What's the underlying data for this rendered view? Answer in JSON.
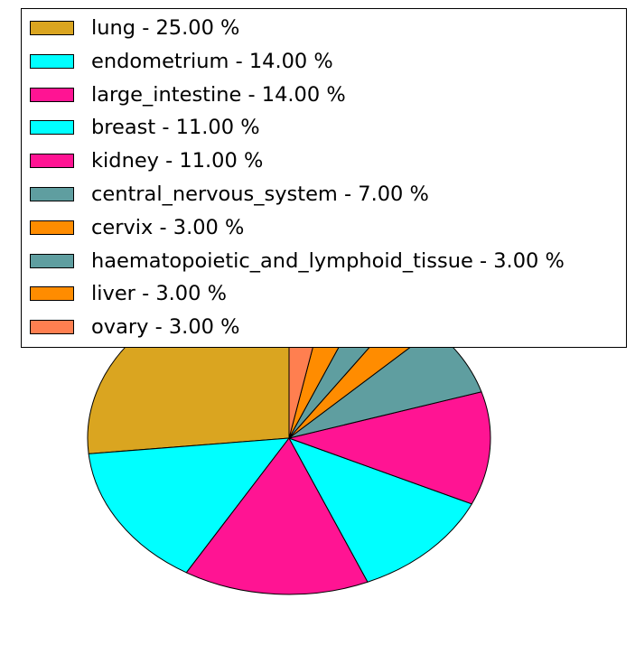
{
  "chart_data": {
    "type": "pie",
    "title": "",
    "start_angle_deg": 90,
    "direction": "counterclockwise",
    "legend_position": "top",
    "slices": [
      {
        "label": "lung",
        "value": 25.0,
        "legend": "lung - 25.00 %",
        "color": "#DAA520"
      },
      {
        "label": "endometrium",
        "value": 14.0,
        "legend": "endometrium - 14.00 %",
        "color": "#00FFFF"
      },
      {
        "label": "large_intestine",
        "value": 14.0,
        "legend": "large_intestine - 14.00 %",
        "color": "#FF1493"
      },
      {
        "label": "breast",
        "value": 11.0,
        "legend": "breast - 11.00 %",
        "color": "#00FFFF"
      },
      {
        "label": "kidney",
        "value": 11.0,
        "legend": "kidney - 11.00 %",
        "color": "#FF1493"
      },
      {
        "label": "central_nervous_system",
        "value": 7.0,
        "legend": "central_nervous_system - 7.00 %",
        "color": "#5F9EA0"
      },
      {
        "label": "cervix",
        "value": 3.0,
        "legend": "cervix - 3.00 %",
        "color": "#FF8C00"
      },
      {
        "label": "haematopoietic_and_lymphoid_tissue",
        "value": 3.0,
        "legend": "haematopoietic_and_lymphoid_tissue - 3.00 %",
        "color": "#5F9EA0"
      },
      {
        "label": "liver",
        "value": 3.0,
        "legend": "liver - 3.00 %",
        "color": "#FF8C00"
      },
      {
        "label": "ovary",
        "value": 3.0,
        "legend": "ovary - 3.00 %",
        "color": "#FF7F50"
      }
    ]
  }
}
